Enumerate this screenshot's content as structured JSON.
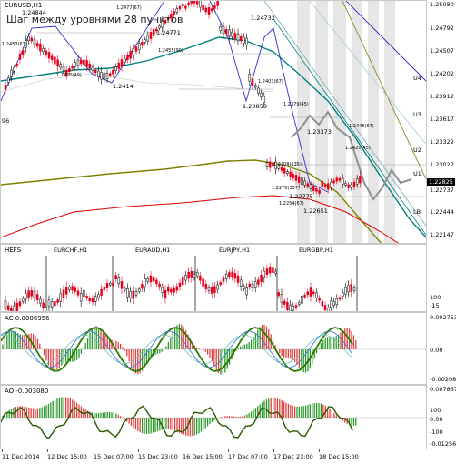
{
  "main": {
    "symbol": "EURUSD,H1",
    "overlay_text": "Шаг между уровнями 28 пунктов",
    "price_ticks": [
      "1.25080",
      "1.24792",
      "1.24507",
      "1.24202",
      "1.23912",
      "1.23617",
      "1.23322",
      "1.23027",
      "1.22737",
      "1.22444",
      "1.22147"
    ],
    "current_price": "1.22825",
    "level_labels": [
      "U4",
      "U3",
      "U2",
      "U1",
      "LB"
    ],
    "annotations": [
      "1.24844",
      "1.2477(67)",
      "1.24771",
      "1.24732",
      "1.2414",
      "1.2420(49)",
      "1.2455(90)",
      "1.2453(67)",
      "1.23858",
      "1.2403(67)",
      "1.2379(45)",
      "1.23373",
      "1.2446(67)",
      "1.2420(45)",
      "1.2308(135)",
      "1.22775",
      "1.2270(157)",
      "1.2254(67)",
      "1.22651"
    ],
    "left_edge_label": "96"
  },
  "mid": {
    "title": "HEFS",
    "symbols": [
      "EURCHF,H1",
      "EURAUD,H1",
      "EURJPY,H1",
      "EURGBP,H1"
    ],
    "scale": [
      "100",
      "-15"
    ]
  },
  "ac": {
    "title": "AC 0.0006956",
    "scale": [
      "0.0027534",
      "0.00",
      "-0.002083"
    ]
  },
  "ao": {
    "title": "AO -0.003080",
    "scale": [
      "0.0078676",
      "100",
      "0.00",
      "-100",
      "-0.012563"
    ]
  },
  "time_axis": [
    "11 Dec 2014",
    "12 Dec 15:00",
    "15 Dec 07:00",
    "15 Dec 23:00",
    "16 Dec 15:00",
    "17 Dec 07:00",
    "17 Dec 23:00",
    "18 Dec 15:00"
  ],
  "colors": {
    "bull": "#000000",
    "bear": "#e8001c",
    "ma_teal": "#008080",
    "ma_olive": "#808000",
    "ma_red": "#e00000",
    "zigzag": "#3030d0",
    "forecast": "#909090",
    "osc_line": "#2a7a00"
  }
}
